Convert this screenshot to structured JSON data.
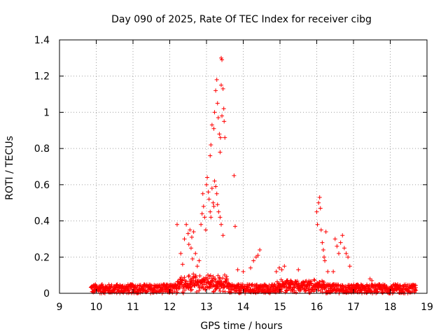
{
  "chart_data": {
    "type": "scatter",
    "title": "Day 090 of 2025, Rate Of TEC Index for receiver cibg",
    "xlabel": "GPS time / hours",
    "ylabel": "ROTI / TECUs",
    "xlim": [
      9,
      19
    ],
    "ylim": [
      0,
      1.4
    ],
    "x_ticks": [
      "9",
      "10",
      "11",
      "12",
      "13",
      "14",
      "15",
      "16",
      "17",
      "18",
      "19"
    ],
    "y_ticks": [
      "0",
      "0.2",
      "0.4",
      "0.6",
      "0.8",
      "1",
      "1.2",
      "1.4"
    ],
    "grid": true,
    "legend": "none",
    "marker": "plus",
    "color": "#ff0000",
    "baseline": {
      "x_range": [
        9.85,
        18.7
      ],
      "y_range": [
        0.0,
        0.05
      ]
    },
    "series": [
      {
        "points": [
          [
            12.2,
            0.38
          ],
          [
            12.3,
            0.22
          ],
          [
            12.35,
            0.16
          ],
          [
            12.4,
            0.3
          ],
          [
            12.45,
            0.38
          ],
          [
            12.5,
            0.33
          ],
          [
            12.52,
            0.27
          ],
          [
            12.55,
            0.35
          ],
          [
            12.58,
            0.25
          ],
          [
            12.6,
            0.31
          ],
          [
            12.62,
            0.19
          ],
          [
            12.65,
            0.34
          ],
          [
            12.7,
            0.22
          ],
          [
            12.75,
            0.15
          ],
          [
            12.8,
            0.18
          ],
          [
            12.85,
            0.38
          ],
          [
            12.88,
            0.44
          ],
          [
            12.9,
            0.55
          ],
          [
            12.92,
            0.48
          ],
          [
            12.95,
            0.42
          ],
          [
            12.98,
            0.35
          ],
          [
            13.0,
            0.6
          ],
          [
            13.02,
            0.64
          ],
          [
            13.05,
            0.56
          ],
          [
            13.07,
            0.52
          ],
          [
            13.1,
            0.45
          ],
          [
            13.12,
            0.42
          ],
          [
            13.15,
            0.58
          ],
          [
            13.18,
            0.5
          ],
          [
            13.2,
            0.48
          ],
          [
            13.22,
            0.62
          ],
          [
            13.25,
            0.59
          ],
          [
            13.28,
            0.55
          ],
          [
            13.3,
            0.49
          ],
          [
            13.33,
            0.45
          ],
          [
            13.37,
            0.42
          ],
          [
            13.4,
            0.38
          ],
          [
            13.45,
            0.32
          ],
          [
            13.1,
            0.76
          ],
          [
            13.12,
            0.82
          ],
          [
            13.15,
            0.93
          ],
          [
            13.2,
            0.91
          ],
          [
            13.22,
            1.0
          ],
          [
            13.25,
            1.12
          ],
          [
            13.28,
            1.18
          ],
          [
            13.3,
            1.05
          ],
          [
            13.32,
            0.97
          ],
          [
            13.35,
            0.88
          ],
          [
            13.37,
            0.78
          ],
          [
            13.38,
            0.86
          ],
          [
            13.4,
            1.15
          ],
          [
            13.42,
            0.98
          ],
          [
            13.45,
            1.13
          ],
          [
            13.47,
            1.02
          ],
          [
            13.48,
            0.95
          ],
          [
            13.5,
            0.86
          ],
          [
            13.4,
            1.3
          ],
          [
            13.42,
            1.29
          ],
          [
            13.75,
            0.65
          ],
          [
            13.78,
            0.37
          ],
          [
            13.85,
            0.13
          ],
          [
            14.0,
            0.12
          ],
          [
            14.2,
            0.14
          ],
          [
            14.28,
            0.18
          ],
          [
            14.35,
            0.2
          ],
          [
            14.4,
            0.21
          ],
          [
            14.45,
            0.24
          ],
          [
            14.9,
            0.12
          ],
          [
            14.98,
            0.14
          ],
          [
            15.05,
            0.13
          ],
          [
            15.12,
            0.15
          ],
          [
            15.5,
            0.13
          ],
          [
            16.0,
            0.45
          ],
          [
            16.02,
            0.38
          ],
          [
            16.05,
            0.5
          ],
          [
            16.08,
            0.53
          ],
          [
            16.1,
            0.47
          ],
          [
            16.12,
            0.35
          ],
          [
            16.15,
            0.28
          ],
          [
            16.18,
            0.24
          ],
          [
            16.2,
            0.2
          ],
          [
            16.22,
            0.18
          ],
          [
            16.25,
            0.34
          ],
          [
            16.3,
            0.12
          ],
          [
            16.5,
            0.3
          ],
          [
            16.55,
            0.26
          ],
          [
            16.6,
            0.22
          ],
          [
            16.65,
            0.28
          ],
          [
            16.7,
            0.32
          ],
          [
            16.75,
            0.25
          ],
          [
            16.8,
            0.22
          ],
          [
            16.85,
            0.2
          ],
          [
            16.9,
            0.15
          ],
          [
            16.45,
            0.12
          ],
          [
            17.45,
            0.08
          ],
          [
            17.5,
            0.07
          ]
        ]
      }
    ]
  }
}
